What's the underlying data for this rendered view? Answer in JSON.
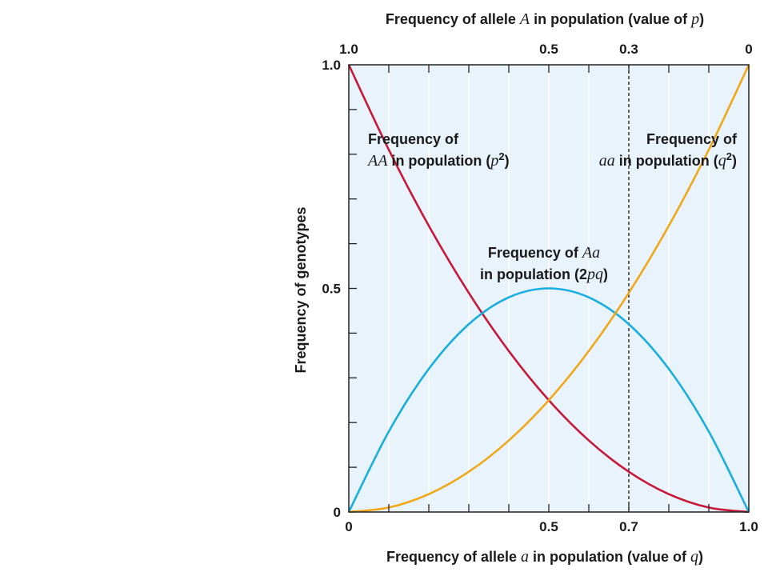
{
  "chart_data": {
    "type": "line",
    "x_range": [
      0,
      1
    ],
    "y_range": [
      0,
      1
    ],
    "grid": true,
    "background_color": "#e8f3fb",
    "x_bottom_axis": {
      "title_parts": [
        {
          "t": "Frequency of allele ",
          "i": false
        },
        {
          "t": "a",
          "i": true
        },
        {
          "t": " in population (value of ",
          "i": false
        },
        {
          "t": "q",
          "i": true
        },
        {
          "t": ")",
          "i": false
        }
      ],
      "ticks": [
        {
          "value": 0,
          "label": "0"
        },
        {
          "value": 0.5,
          "label": "0.5"
        },
        {
          "value": 0.7,
          "label": "0.7"
        },
        {
          "value": 1,
          "label": "1.0"
        }
      ]
    },
    "x_top_axis": {
      "title_parts": [
        {
          "t": "Frequency of allele ",
          "i": false
        },
        {
          "t": "A",
          "i": true
        },
        {
          "t": " in population (value of ",
          "i": false
        },
        {
          "t": "p",
          "i": true
        },
        {
          "t": ")",
          "i": false
        }
      ],
      "ticks": [
        {
          "q_value": 0,
          "label": "1.0"
        },
        {
          "q_value": 0.5,
          "label": "0.5"
        },
        {
          "q_value": 0.7,
          "label": "0.3"
        },
        {
          "q_value": 1,
          "label": "0"
        }
      ]
    },
    "y_axis": {
      "title": "Frequency of genotypes",
      "ticks": [
        {
          "value": 0,
          "label": "0"
        },
        {
          "value": 0.5,
          "label": "0.5"
        },
        {
          "value": 1,
          "label": "1.0"
        }
      ]
    },
    "reference_line": {
      "x": 0.7,
      "style": "dashed"
    },
    "series": [
      {
        "key": "AA",
        "color": "#c8183a",
        "x": [
          0,
          0.1,
          0.2,
          0.3,
          0.4,
          0.5,
          0.6,
          0.7,
          0.8,
          0.9,
          1
        ],
        "y": [
          1,
          0.81,
          0.64,
          0.49,
          0.36,
          0.25,
          0.16,
          0.09,
          0.04,
          0.01,
          0
        ]
      },
      {
        "key": "Aa",
        "color": "#1aaee0",
        "x": [
          0,
          0.1,
          0.2,
          0.3,
          0.4,
          0.5,
          0.6,
          0.7,
          0.8,
          0.9,
          1
        ],
        "y": [
          0,
          0.18,
          0.32,
          0.42,
          0.48,
          0.5,
          0.48,
          0.42,
          0.32,
          0.18,
          0
        ]
      },
      {
        "key": "aa",
        "color": "#f0a818",
        "x": [
          0,
          0.1,
          0.2,
          0.3,
          0.4,
          0.5,
          0.6,
          0.7,
          0.8,
          0.9,
          1
        ],
        "y": [
          0,
          0.01,
          0.04,
          0.09,
          0.16,
          0.25,
          0.36,
          0.49,
          0.64,
          0.81,
          1
        ]
      }
    ],
    "annotations": [
      {
        "key": "AA",
        "lines": [
          [
            {
              "t": "Frequency of",
              "i": false
            }
          ],
          [
            {
              "t": "AA",
              "i": true
            },
            {
              "t": " in population (",
              "i": false
            },
            {
              "t": "p",
              "i": true
            },
            {
              "t": "2",
              "i": false,
              "sup": true
            },
            {
              "t": ")",
              "i": false
            }
          ]
        ]
      },
      {
        "key": "aa",
        "lines": [
          [
            {
              "t": "Frequency of",
              "i": false
            }
          ],
          [
            {
              "t": "aa",
              "i": true
            },
            {
              "t": " in population (",
              "i": false
            },
            {
              "t": "q",
              "i": true
            },
            {
              "t": "2",
              "i": false,
              "sup": true
            },
            {
              "t": ")",
              "i": false
            }
          ]
        ]
      },
      {
        "key": "Aa",
        "lines": [
          [
            {
              "t": "Frequency of ",
              "i": false
            },
            {
              "t": "Aa",
              "i": true
            }
          ],
          [
            {
              "t": "in population (2",
              "i": false
            },
            {
              "t": "pq",
              "i": true
            },
            {
              "t": ")",
              "i": false
            }
          ]
        ]
      }
    ]
  }
}
